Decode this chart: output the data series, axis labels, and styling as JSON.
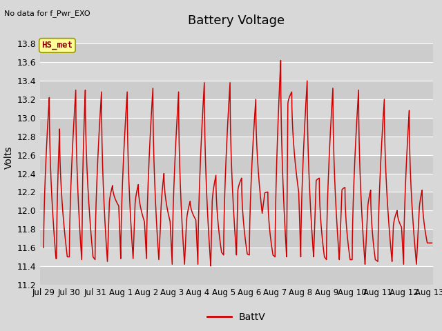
{
  "title": "Battery Voltage",
  "ylabel": "Volts",
  "top_left_text": "No data for f_Pwr_EXO",
  "legend_label": "BattV",
  "legend_line_color": "#cc0000",
  "line_color": "#cc0000",
  "background_color": "#d8d8d8",
  "plot_bg_color": "#d8d8d8",
  "ylim": [
    11.2,
    13.95
  ],
  "yticks": [
    11.2,
    11.4,
    11.6,
    11.8,
    12.0,
    12.2,
    12.4,
    12.6,
    12.8,
    13.0,
    13.2,
    13.4,
    13.6,
    13.8
  ],
  "xtick_labels": [
    "Jul 29",
    "Jul 30",
    "Jul 31",
    "Aug 1",
    "Aug 2",
    "Aug 3",
    "Aug 4",
    "Aug 5",
    "Aug 6",
    "Aug 7",
    "Aug 8",
    "Aug 9",
    "Aug 10",
    "Aug 11",
    "Aug 12",
    "Aug 13"
  ],
  "annotation_box": "HS_met",
  "annotation_box_bg": "#ffff99",
  "annotation_box_border": "#999900",
  "annotation_text_color": "#880000",
  "title_fontsize": 13,
  "axis_label_fontsize": 10,
  "tick_fontsize": 9,
  "cycle_params": [
    [
      0.0,
      0.22,
      0.48,
      11.6,
      13.22,
      11.48
    ],
    [
      0.5,
      0.62,
      0.92,
      11.48,
      12.88,
      11.5
    ],
    [
      1.0,
      1.25,
      1.48,
      11.5,
      13.3,
      11.47
    ],
    [
      1.5,
      1.62,
      1.92,
      11.87,
      13.3,
      11.5
    ],
    [
      2.0,
      2.25,
      2.48,
      11.47,
      13.28,
      11.45
    ],
    [
      2.55,
      2.68,
      2.92,
      12.05,
      12.27,
      12.05
    ],
    [
      3.0,
      3.25,
      3.48,
      11.48,
      13.28,
      11.48
    ],
    [
      3.55,
      3.68,
      3.92,
      12.03,
      12.28,
      11.88
    ],
    [
      4.0,
      4.25,
      4.48,
      11.48,
      13.32,
      11.47
    ],
    [
      4.55,
      4.68,
      4.92,
      11.88,
      12.4,
      11.88
    ],
    [
      5.0,
      5.25,
      5.48,
      11.42,
      13.28,
      11.42
    ],
    [
      5.55,
      5.7,
      5.92,
      11.85,
      12.1,
      11.9
    ],
    [
      6.0,
      6.25,
      6.5,
      11.42,
      13.38,
      11.4
    ],
    [
      6.55,
      6.7,
      6.92,
      12.05,
      12.38,
      11.55
    ],
    [
      7.0,
      7.25,
      7.5,
      11.52,
      13.38,
      11.52
    ],
    [
      7.55,
      7.7,
      7.92,
      12.2,
      12.35,
      11.53
    ],
    [
      8.0,
      8.25,
      8.5,
      11.52,
      13.2,
      11.97
    ],
    [
      8.6,
      8.72,
      8.92,
      12.19,
      12.2,
      11.52
    ],
    [
      9.0,
      9.22,
      9.45,
      11.5,
      13.62,
      11.5
    ],
    [
      9.5,
      9.65,
      9.92,
      13.15,
      13.28,
      12.2
    ],
    [
      10.0,
      10.25,
      10.5,
      11.5,
      13.4,
      11.5
    ],
    [
      10.6,
      10.72,
      10.92,
      12.32,
      12.35,
      11.5
    ],
    [
      11.0,
      11.25,
      11.5,
      11.47,
      13.32,
      11.47
    ],
    [
      11.6,
      11.72,
      11.92,
      12.22,
      12.25,
      11.47
    ],
    [
      12.0,
      12.25,
      12.5,
      11.47,
      13.3,
      11.42
    ],
    [
      12.6,
      12.72,
      12.9,
      12.0,
      12.22,
      11.47
    ],
    [
      13.0,
      13.25,
      13.55,
      11.45,
      13.2,
      11.45
    ],
    [
      13.6,
      13.75,
      13.92,
      11.82,
      12.0,
      11.82
    ],
    [
      14.0,
      14.22,
      14.5,
      11.42,
      13.08,
      11.42
    ],
    [
      14.6,
      14.72,
      14.92,
      11.97,
      12.22,
      11.65
    ],
    [
      15.0,
      15.05,
      15.1,
      11.65,
      11.65,
      11.65
    ]
  ]
}
